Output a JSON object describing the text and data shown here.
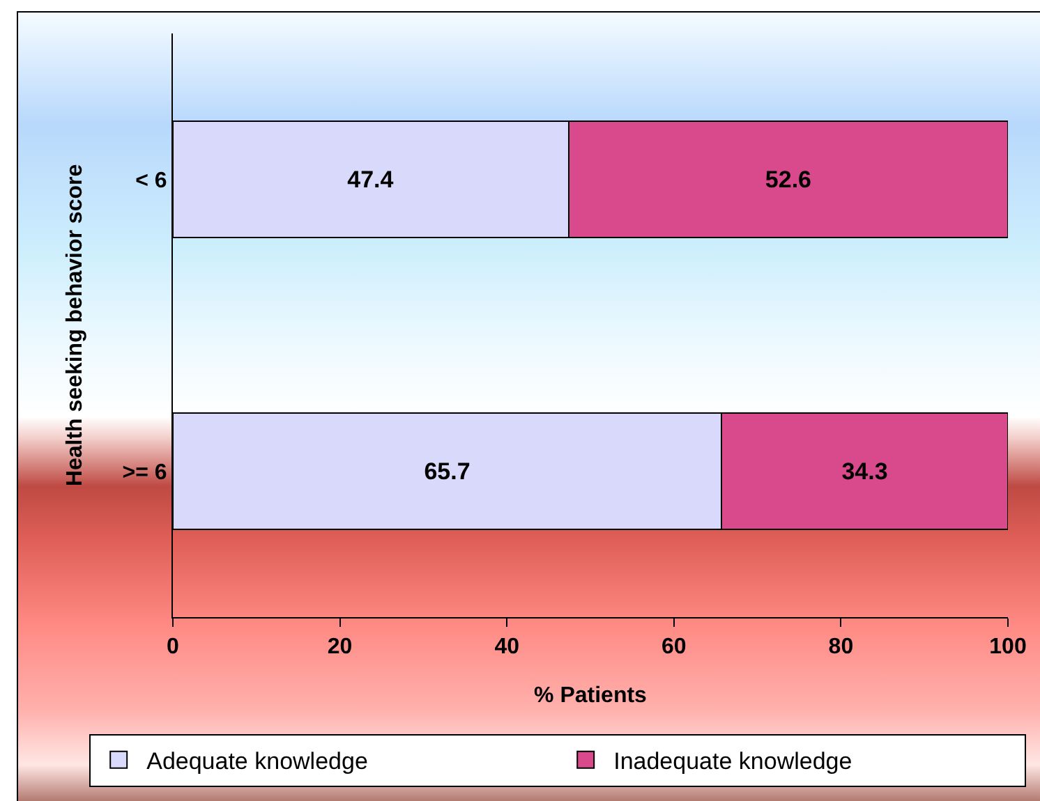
{
  "chart_data": {
    "type": "bar",
    "orientation": "horizontal",
    "stacked": true,
    "categories": [
      "< 6",
      ">= 6"
    ],
    "series": [
      {
        "name": "Adequate knowledge",
        "color": "#d9d9fb",
        "values": [
          47.4,
          65.7
        ]
      },
      {
        "name": "Inadequate knowledge",
        "color": "#d94a8c",
        "values": [
          52.6,
          34.3
        ]
      }
    ],
    "xlabel": "% Patients",
    "ylabel": "Health seeking behavior score",
    "xlim": [
      0,
      100
    ],
    "xticks": [
      0,
      20,
      40,
      60,
      80,
      100
    ],
    "data_labels": true,
    "legend": "bottom"
  }
}
